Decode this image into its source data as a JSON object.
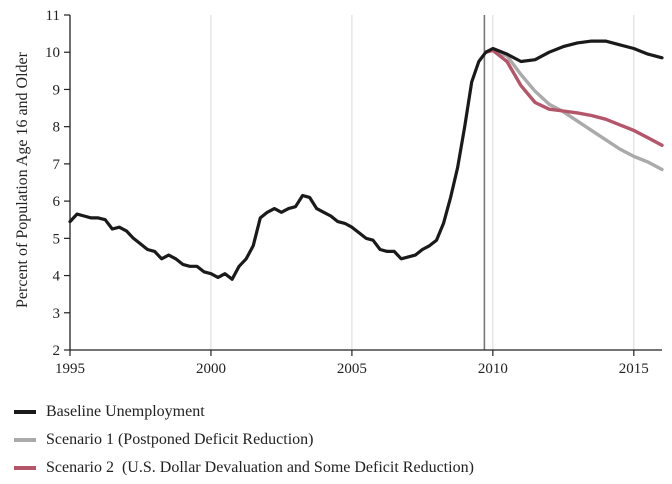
{
  "chart_data": {
    "type": "line",
    "title": "",
    "xlabel": "",
    "ylabel": "Percent of Population Age 16 and Older",
    "xlim": [
      1995,
      2016
    ],
    "ylim": [
      2,
      11
    ],
    "xticks": [
      1995,
      2000,
      2005,
      2010,
      2015
    ],
    "yticks": [
      2,
      3,
      4,
      5,
      6,
      7,
      8,
      9,
      10,
      11
    ],
    "grid": "vertical",
    "reference_line_x": 2009.7,
    "legend": "bottom",
    "series": [
      {
        "name": "Baseline Unemployment",
        "color": "#1a1a1a",
        "x": [
          1995.0,
          1995.25,
          1995.5,
          1995.75,
          1996.0,
          1996.25,
          1996.5,
          1996.75,
          1997.0,
          1997.25,
          1997.5,
          1997.75,
          1998.0,
          1998.25,
          1998.5,
          1998.75,
          1999.0,
          1999.25,
          1999.5,
          1999.75,
          2000.0,
          2000.25,
          2000.5,
          2000.75,
          2001.0,
          2001.25,
          2001.5,
          2001.75,
          2002.0,
          2002.25,
          2002.5,
          2002.75,
          2003.0,
          2003.25,
          2003.5,
          2003.75,
          2004.0,
          2004.25,
          2004.5,
          2004.75,
          2005.0,
          2005.25,
          2005.5,
          2005.75,
          2006.0,
          2006.25,
          2006.5,
          2006.75,
          2007.0,
          2007.25,
          2007.5,
          2007.75,
          2008.0,
          2008.25,
          2008.5,
          2008.75,
          2009.0,
          2009.25,
          2009.5,
          2009.75,
          2010.0,
          2010.5,
          2011.0,
          2011.5,
          2012.0,
          2012.5,
          2013.0,
          2013.5,
          2014.0,
          2014.5,
          2015.0,
          2015.5,
          2016.0
        ],
        "y": [
          5.45,
          5.65,
          5.6,
          5.55,
          5.55,
          5.5,
          5.25,
          5.3,
          5.2,
          5.0,
          4.85,
          4.7,
          4.65,
          4.45,
          4.55,
          4.45,
          4.3,
          4.25,
          4.25,
          4.1,
          4.05,
          3.95,
          4.05,
          3.9,
          4.25,
          4.45,
          4.8,
          5.55,
          5.7,
          5.8,
          5.7,
          5.8,
          5.85,
          6.15,
          6.1,
          5.8,
          5.7,
          5.6,
          5.45,
          5.4,
          5.3,
          5.15,
          5.0,
          4.95,
          4.7,
          4.65,
          4.65,
          4.45,
          4.5,
          4.55,
          4.7,
          4.8,
          4.95,
          5.4,
          6.1,
          6.9,
          8.0,
          9.2,
          9.75,
          10.0,
          10.1,
          9.95,
          9.75,
          9.8,
          10.0,
          10.15,
          10.25,
          10.3,
          10.3,
          10.2,
          10.1,
          9.95,
          9.85
        ]
      },
      {
        "name": "Scenario 1 (Postponed Deficit Reduction)",
        "color": "#aaaaaa",
        "x": [
          2009.75,
          2010.0,
          2010.5,
          2011.0,
          2011.5,
          2012.0,
          2012.5,
          2013.0,
          2013.5,
          2014.0,
          2014.5,
          2015.0,
          2015.5,
          2016.0
        ],
        "y": [
          10.0,
          10.05,
          9.9,
          9.4,
          8.95,
          8.6,
          8.4,
          8.15,
          7.9,
          7.65,
          7.4,
          7.2,
          7.05,
          6.85
        ]
      },
      {
        "name": "Scenario 2  (U.S. Dollar Devaluation and Some Deficit Reduction)",
        "color": "#b55569",
        "x": [
          2009.75,
          2010.0,
          2010.5,
          2011.0,
          2011.5,
          2012.0,
          2012.5,
          2013.0,
          2013.5,
          2014.0,
          2014.5,
          2015.0,
          2015.5,
          2016.0
        ],
        "y": [
          10.0,
          10.05,
          9.75,
          9.1,
          8.65,
          8.47,
          8.42,
          8.37,
          8.3,
          8.2,
          8.05,
          7.9,
          7.7,
          7.5
        ]
      }
    ]
  }
}
